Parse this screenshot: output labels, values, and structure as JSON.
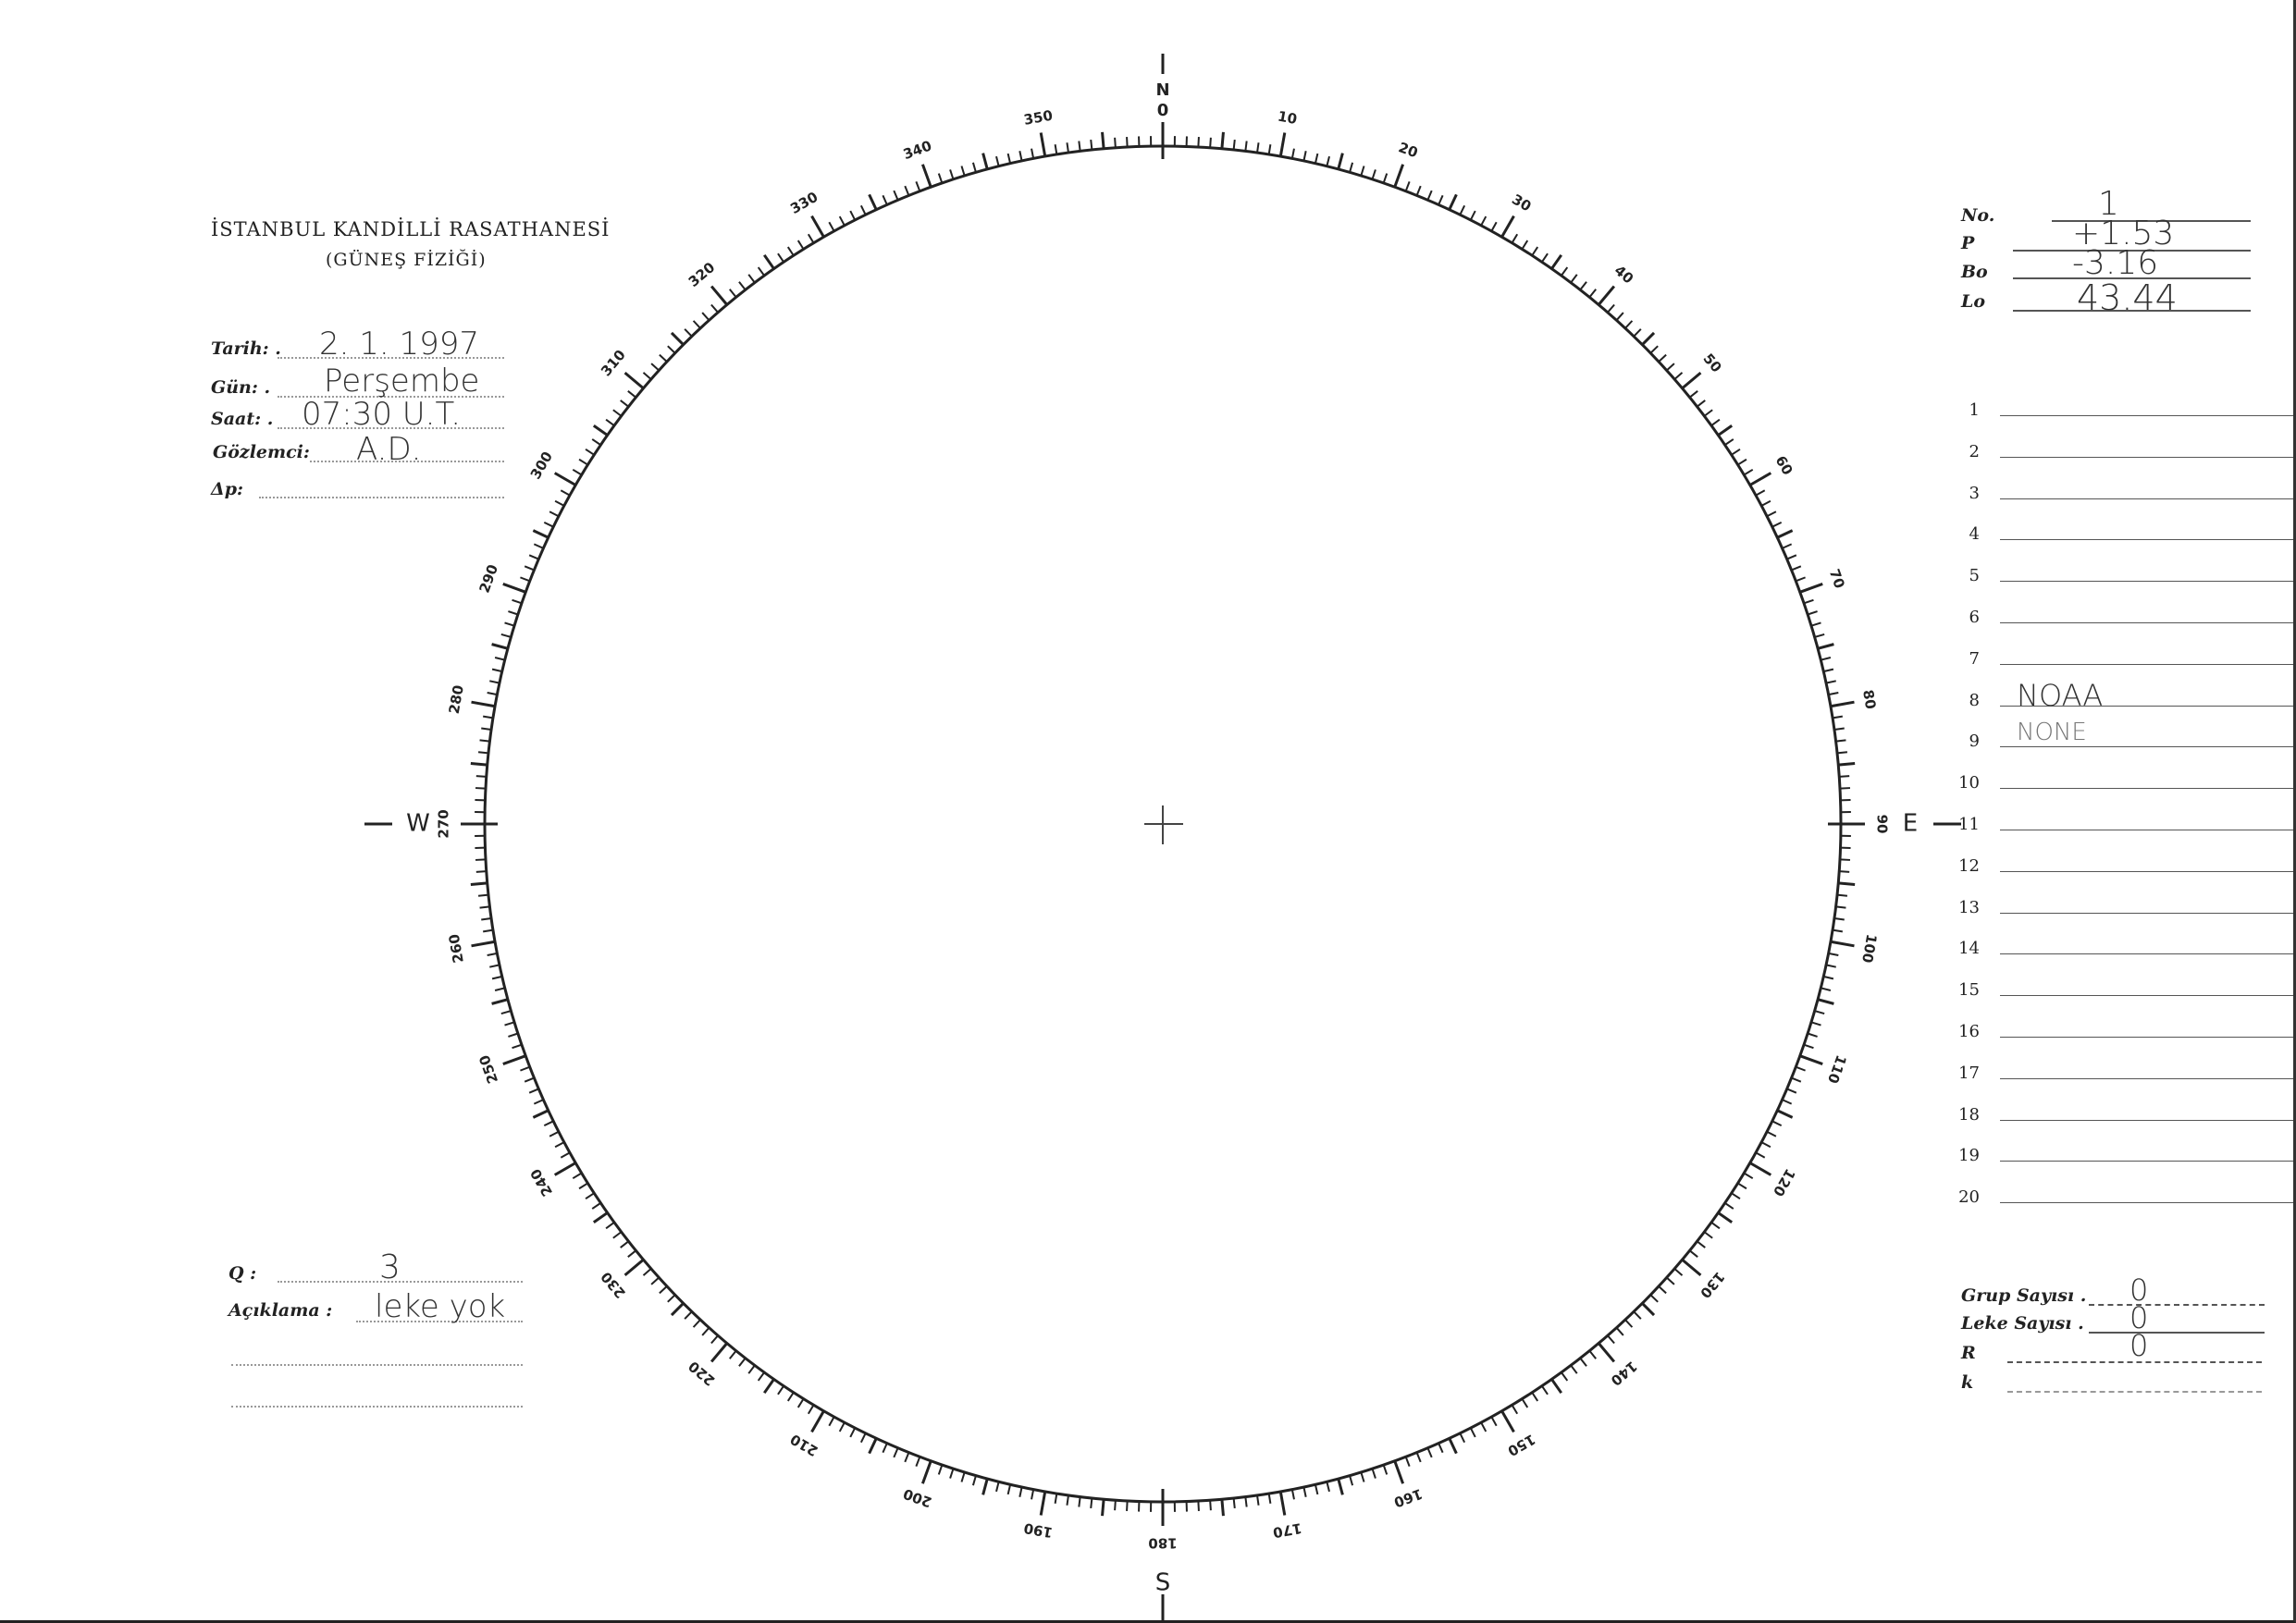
{
  "header": {
    "institution": "İSTANBUL KANDİLLİ RASATHANESİ",
    "department": "(GÜNEŞ FİZİĞİ)"
  },
  "observation": {
    "tarih": {
      "label": "Tarih: .",
      "value": "2. 1. 1997"
    },
    "gun": {
      "label": "Gün: .",
      "value": "Perşembe"
    },
    "saat": {
      "label": "Saat: .",
      "value": "07:30 U.T."
    },
    "gozlemci": {
      "label": "Gözlemci:",
      "value": "A.D."
    },
    "delta_p": {
      "label": "Δp:",
      "value": ""
    }
  },
  "solar_params": {
    "no": {
      "label": "No.",
      "value": "1"
    },
    "p": {
      "label": "P",
      "value": "+1.53"
    },
    "bo": {
      "label": "Bo",
      "value": "-3.16"
    },
    "lo": {
      "label": "Lo",
      "value": "43.44"
    }
  },
  "notes": {
    "rows": [
      "",
      "",
      "",
      "",
      "",
      "",
      "",
      "NOAA",
      "NONE",
      "",
      "",
      "",
      "",
      "",
      "",
      "",
      "",
      "",
      "",
      ""
    ],
    "numbers": [
      "1",
      "2",
      "3",
      "4",
      "5",
      "6",
      "7",
      "8",
      "9",
      "10",
      "11",
      "12",
      "13",
      "14",
      "15",
      "16",
      "17",
      "18",
      "19",
      "20"
    ]
  },
  "quality": {
    "q_label": "Q :",
    "q_value": "3",
    "aciklama_label": "Açıklama :",
    "aciklama_value": "leke yok"
  },
  "counts": {
    "grup": {
      "label": "Grup Sayısı .",
      "value": "0"
    },
    "leke": {
      "label": "Leke Sayısı .",
      "value": "0"
    },
    "r": {
      "label": "R",
      "value": "0"
    },
    "k": {
      "label": "k",
      "value": ""
    }
  },
  "dial": {
    "cardinals": {
      "north": "N",
      "east": "E",
      "south": "S",
      "west": "W"
    },
    "degree_labels": [
      "10",
      "20",
      "30",
      "40",
      "50",
      "60",
      "70",
      "80",
      "90",
      "100",
      "110",
      "120",
      "130",
      "140",
      "150",
      "160",
      "170",
      "180",
      "190",
      "200",
      "210",
      "220",
      "230",
      "240",
      "250",
      "260",
      "270",
      "280",
      "290",
      "300",
      "310",
      "320",
      "330",
      "340",
      "350",
      "0"
    ]
  }
}
